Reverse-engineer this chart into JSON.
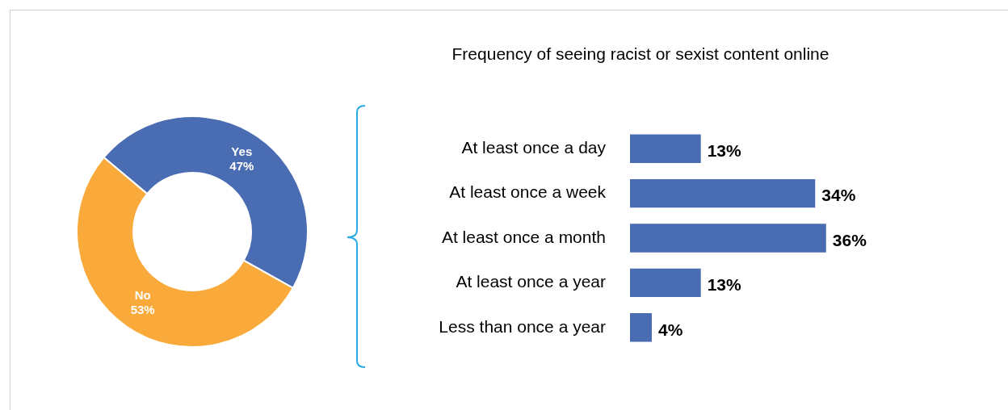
{
  "chart_data": [
    {
      "type": "donut",
      "categories": [
        "Yes",
        "No"
      ],
      "values": [
        47,
        53
      ],
      "colors": [
        "#4a6cb3",
        "#f9aa3b"
      ],
      "value_labels": [
        "47%",
        "53%"
      ],
      "legend": false
    },
    {
      "type": "bar",
      "orientation": "horizontal",
      "title": "Frequency of seeing racist or sexist content online",
      "categories": [
        "At least once a day",
        "At least once a week",
        "At least once a month",
        "At least once a year",
        "Less than once a year"
      ],
      "values": [
        13,
        34,
        36,
        13,
        4
      ],
      "color": "#4a6cb3",
      "value_labels": [
        "13%",
        "34%",
        "36%",
        "13%",
        "4%"
      ],
      "legend": false,
      "tick_labels": "y"
    }
  ]
}
